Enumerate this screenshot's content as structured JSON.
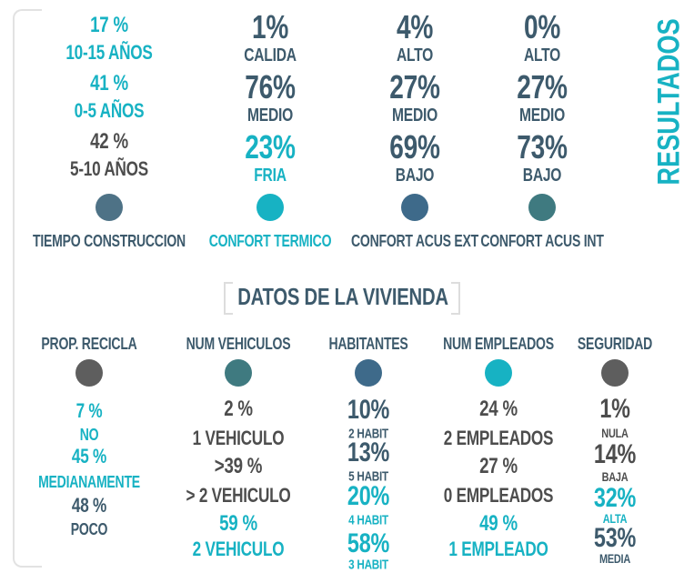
{
  "side_title": "RESULTADOS",
  "top_columns": [
    {
      "title": "TIEMPO CONSTRUCCION",
      "items": [
        {
          "value": "17 %",
          "label": "10-15 AÑOS"
        },
        {
          "value": "41 %",
          "label": "0-5 AÑOS"
        },
        {
          "value": "42 %",
          "label": "5-10 AÑOS"
        }
      ]
    },
    {
      "title": "CONFORT TERMICO",
      "items": [
        {
          "value": "1%",
          "label": "CALIDA"
        },
        {
          "value": "76%",
          "label": "MEDIO"
        },
        {
          "value": "23%",
          "label": "FRIA"
        }
      ]
    },
    {
      "title": "CONFORT ACUS EXT",
      "items": [
        {
          "value": "4%",
          "label": "ALTO"
        },
        {
          "value": "27%",
          "label": "MEDIO"
        },
        {
          "value": "69%",
          "label": "BAJO"
        }
      ]
    },
    {
      "title": "CONFORT ACUS INT",
      "items": [
        {
          "value": "0%",
          "label": "ALTO"
        },
        {
          "value": "27%",
          "label": "MEDIO"
        },
        {
          "value": "73%",
          "label": "BAJO"
        }
      ]
    }
  ],
  "section_title": "DATOS DE LA VIVIENDA",
  "bottom_columns": [
    {
      "title": "PROP. RECICLA",
      "items": [
        {
          "value": "7 %",
          "label": "NO"
        },
        {
          "value": "45 %",
          "label": "MEDIANAMENTE"
        },
        {
          "value": "48 %",
          "label": "POCO"
        }
      ]
    },
    {
      "title": "NUM VEHICULOS",
      "items": [
        {
          "value": "2 %",
          "label": "1 VEHICULO"
        },
        {
          "value": ">39 %",
          "label": "> 2 VEHICULO"
        },
        {
          "value": "59 %",
          "label": "2 VEHICULO"
        }
      ]
    },
    {
      "title": "HABITANTES",
      "items": [
        {
          "value": "10%",
          "label": "2 HABIT"
        },
        {
          "value": "13%",
          "label": "5 HABIT"
        },
        {
          "value": "20%",
          "label": "4 HABIT"
        },
        {
          "value": "58%",
          "label": "3 HABIT"
        }
      ]
    },
    {
      "title": "NUM EMPLEADOS",
      "items": [
        {
          "value": "24 %",
          "label": "2 EMPLEADOS"
        },
        {
          "value": "27 %",
          "label": "0 EMPLEADOS"
        },
        {
          "value": "49 %",
          "label": "1 EMPLEADO"
        }
      ]
    },
    {
      "title": "SEGURIDAD",
      "items": [
        {
          "value": "1%",
          "label": "NULA"
        },
        {
          "value": "14%",
          "label": "BAJA"
        },
        {
          "value": "32%",
          "label": "ALTA"
        },
        {
          "value": "53%",
          "label": "MEDIA"
        }
      ]
    }
  ]
}
